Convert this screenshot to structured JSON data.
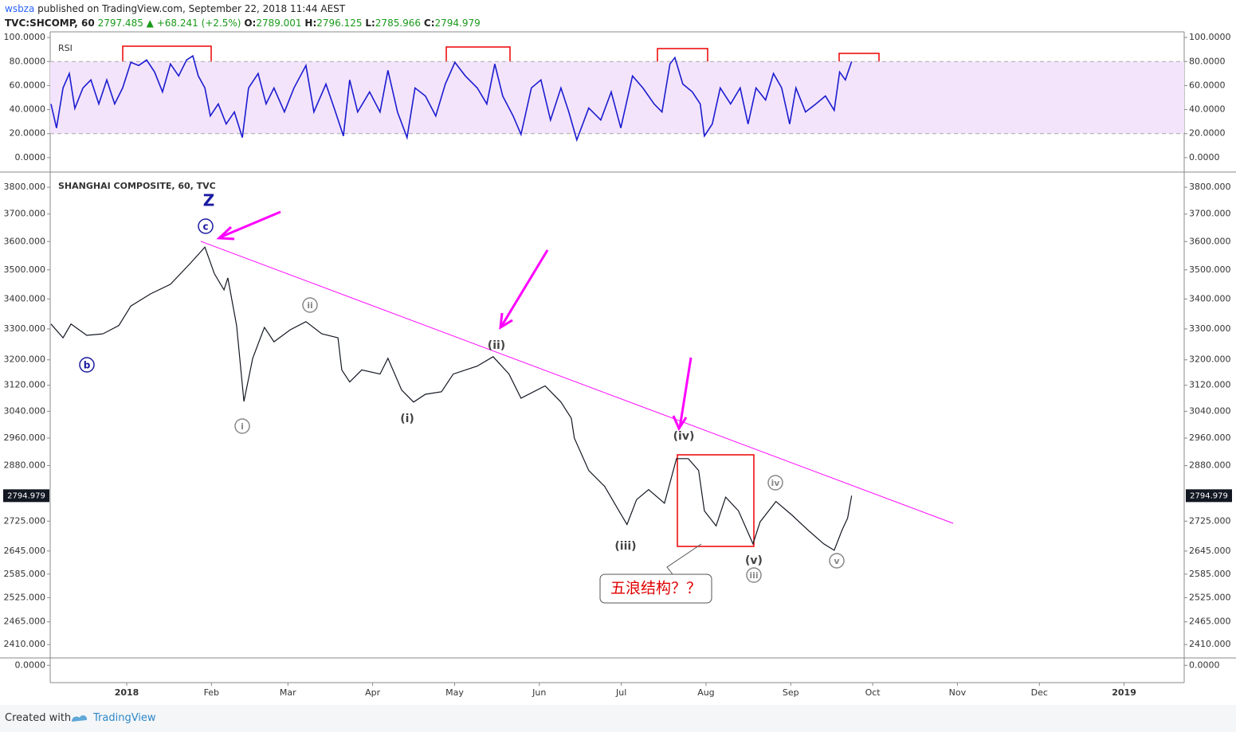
{
  "header": {
    "author": "wsbza",
    "published": "published on TradingView.com, September 22, 2018 11:44 AEST",
    "symbol": "TVC:SHCOMP, 60",
    "last": "2797.485",
    "change": "▲ +68.241 (+2.5%)",
    "ohlc": [
      {
        "label": "O:",
        "value": "2789.001"
      },
      {
        "label": "H:",
        "value": "2796.125"
      },
      {
        "label": "L:",
        "value": "2785.966"
      },
      {
        "label": "C:",
        "value": "2794.979"
      }
    ]
  },
  "chart_data": [
    {
      "type": "line",
      "title": "RSI",
      "color": "#1c1cd0",
      "band": [
        20,
        80
      ],
      "band_color": "#f3e4fb",
      "xlim": [
        -28,
        387
      ],
      "ylim": [
        -12,
        104.7
      ],
      "yticks": [
        {
          "value": 0,
          "label": "0.0000"
        },
        {
          "value": 20,
          "label": "20.0000"
        },
        {
          "value": 40,
          "label": "40.0000"
        },
        {
          "value": 60,
          "label": "60.0000"
        },
        {
          "value": 80,
          "label": "80.0000"
        },
        {
          "value": 100,
          "label": "100.0000"
        }
      ],
      "x": [
        -27.7,
        -25.7,
        -23.3,
        -21.0,
        -19.0,
        -16.0,
        -13.1,
        -10.2,
        -7.3,
        -4.4,
        -1.5,
        1.5,
        4.4,
        7.3,
        10.2,
        13.1,
        16.0,
        19.0,
        21.9,
        24.2,
        26.2,
        28.6,
        30.6,
        33.5,
        36.4,
        39.4,
        42.3,
        44.6,
        48.1,
        51.0,
        53.9,
        57.7,
        61.2,
        65.6,
        68.5,
        72.9,
        76.4,
        79.3,
        81.6,
        84.5,
        88.9,
        92.7,
        95.6,
        99.1,
        102.6,
        105.5,
        109.3,
        113.1,
        116.6,
        120.1,
        123.9,
        128.3,
        131.8,
        134.7,
        137.6,
        141.4,
        144.3,
        148.1,
        151.6,
        155.1,
        158.9,
        161.8,
        164.7,
        169.1,
        173.5,
        177.3,
        180.8,
        185.1,
        188.9,
        193.0,
        195.9,
        198.8,
        200.6,
        203.5,
        207.0,
        209.9,
        211.4,
        214.3,
        217.2,
        221.0,
        224.5,
        227.4,
        230.3,
        233.8,
        236.7,
        239.7,
        242.6,
        244.9,
        248.4,
        252.2,
        255.7,
        258.9,
        260.9,
        263.0,
        265.3
      ],
      "values": [
        44.7,
        24.7,
        58,
        70,
        41,
        58,
        64.7,
        44.7,
        64.7,
        44.7,
        58,
        79.3,
        76.7,
        81.3,
        71.3,
        54.7,
        78,
        68,
        81.3,
        84.7,
        68,
        58,
        34.7,
        44.7,
        28,
        38,
        16.7,
        58,
        70,
        44.7,
        58,
        38,
        58,
        76.7,
        38,
        61.3,
        38,
        18,
        64.7,
        38,
        54.7,
        38,
        72.7,
        38,
        16.7,
        58,
        51.3,
        34.7,
        61.3,
        79.3,
        68,
        58,
        44.7,
        78,
        51.3,
        34.7,
        19.3,
        58,
        64.7,
        31.3,
        58,
        38,
        14.7,
        41.3,
        31.3,
        54.7,
        24.7,
        68,
        58,
        44.7,
        38,
        78,
        83.3,
        61.3,
        54.7,
        44.7,
        18,
        28,
        58,
        44.7,
        58,
        28,
        58,
        48,
        70,
        58,
        28,
        58,
        38,
        44.7,
        51.3,
        39.3,
        71.3,
        64.7,
        80
      ]
    },
    {
      "type": "line",
      "title": "SHANGHAI COMPOSITE, 60, TVC",
      "color": "#131722",
      "log_scale": true,
      "last_value": 2794.979,
      "xlim": [
        -28,
        387
      ],
      "ylim": [
        2378,
        3858
      ],
      "xticks": [
        {
          "value": 0,
          "label": "2018"
        },
        {
          "value": 31,
          "label": "Feb"
        },
        {
          "value": 59,
          "label": "Mar"
        },
        {
          "value": 90,
          "label": "Apr"
        },
        {
          "value": 120,
          "label": "May"
        },
        {
          "value": 151,
          "label": "Jun"
        },
        {
          "value": 181,
          "label": "Jul"
        },
        {
          "value": 212,
          "label": "Aug"
        },
        {
          "value": 243,
          "label": "Sep"
        },
        {
          "value": 273,
          "label": "Oct"
        },
        {
          "value": 304,
          "label": "Nov"
        },
        {
          "value": 334,
          "label": "Dec"
        },
        {
          "value": 365,
          "label": "2019"
        }
      ],
      "yticks": [
        {
          "value": 2410,
          "label": "2410.000"
        },
        {
          "value": 2465,
          "label": "2465.000"
        },
        {
          "value": 2525,
          "label": "2525.000"
        },
        {
          "value": 2585,
          "label": "2585.000"
        },
        {
          "value": 2645,
          "label": "2645.000"
        },
        {
          "value": 2725,
          "label": "2725.000"
        },
        {
          "value": 2880,
          "label": "2880.000"
        },
        {
          "value": 2960,
          "label": "2960.000"
        },
        {
          "value": 3040,
          "label": "3040.000"
        },
        {
          "value": 3120,
          "label": "3120.000"
        },
        {
          "value": 3200,
          "label": "3200.000"
        },
        {
          "value": 3300,
          "label": "3300.000"
        },
        {
          "value": 3400,
          "label": "3400.000"
        },
        {
          "value": 3500,
          "label": "3500.000"
        },
        {
          "value": 3600,
          "label": "3600.000"
        },
        {
          "value": 3700,
          "label": "3700.000"
        },
        {
          "value": 3800,
          "label": "3800.000"
        }
      ],
      "x": [
        -27.7,
        -23.3,
        -20.4,
        -14.6,
        -8.7,
        -2.9,
        1.5,
        8.7,
        16.0,
        23.3,
        28.6,
        32.1,
        35.6,
        37.0,
        40.2,
        42.9,
        46.1,
        50.4,
        53.9,
        59.8,
        65.6,
        71.4,
        77.3,
        78.7,
        81.6,
        86.0,
        92.7,
        95.6,
        100.6,
        105.0,
        109.3,
        115.2,
        119.5,
        128.3,
        134.1,
        139.9,
        144.3,
        153.1,
        158.9,
        162.7,
        163.8,
        169.1,
        174.9,
        179.3,
        183.1,
        186.6,
        191.0,
        196.8,
        201.2,
        205.5,
        209.3,
        211.4,
        215.7,
        219.2,
        223.9,
        229.2,
        231.8,
        237.6,
        243.4,
        249.3,
        255.1,
        258.9,
        261.8,
        263.8,
        265.3
      ],
      "values": [
        3316,
        3271,
        3316,
        3279,
        3284,
        3311,
        3376,
        3417,
        3450,
        3523,
        3580,
        3486,
        3431,
        3472,
        3311,
        3070,
        3205,
        3305,
        3258,
        3297,
        3324,
        3284,
        3271,
        3168,
        3130,
        3168,
        3155,
        3205,
        3105,
        3068,
        3092,
        3100,
        3155,
        3180,
        3210,
        3155,
        3080,
        3118,
        3068,
        3019,
        2960,
        2866,
        2821,
        2764,
        2716,
        2784,
        2812,
        2774,
        2900,
        2900,
        2866,
        2753,
        2712,
        2791,
        2753,
        2664,
        2723,
        2779,
        2742,
        2701,
        2664,
        2647,
        2701,
        2733,
        2795
      ]
    },
    {
      "type": "pane",
      "ylim": [
        -0.7,
        0.3
      ],
      "yticks": [
        {
          "value": 0,
          "label": "0.0000"
        }
      ]
    }
  ],
  "annotations": {
    "waves": [
      "Z",
      "c",
      "b",
      "i",
      "ii",
      "(i)",
      "(ii)",
      "(iii)",
      "(iv)",
      "(v)",
      "iii",
      "iv",
      "v"
    ],
    "callout": "五浪结构？？"
  },
  "footer": {
    "created_with": "Created with",
    "brand": "TradingView"
  }
}
